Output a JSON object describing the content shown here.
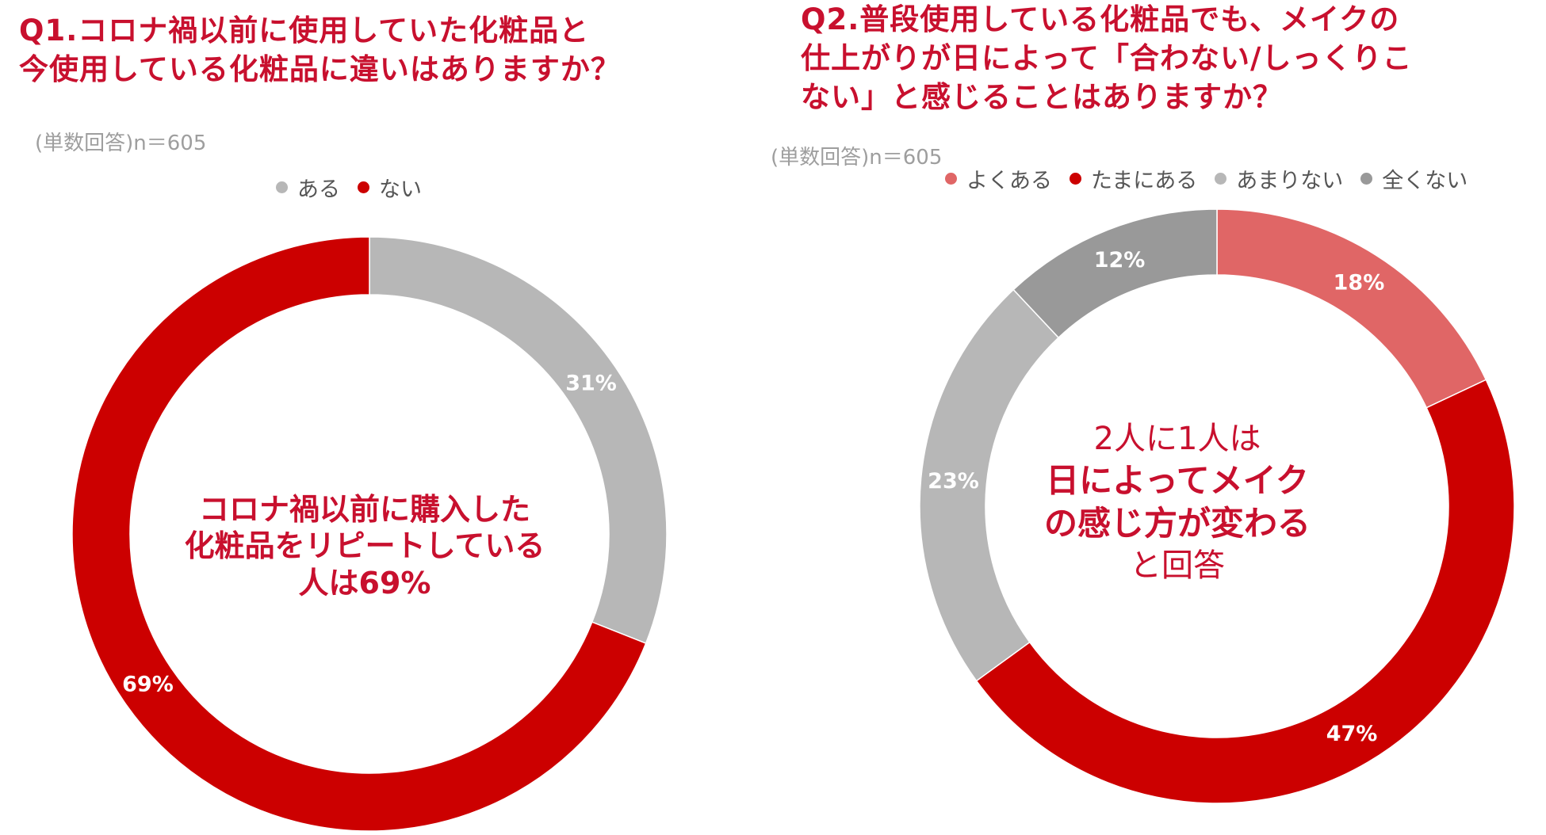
{
  "chart_data": [
    {
      "type": "pie",
      "title_lines": [
        "Q1.コロナ禍以前に使用していた化粧品と",
        "今使用している化粧品に違いはありますか？"
      ],
      "note": "(単数回答)n＝605",
      "categories": [
        "ある",
        "ない"
      ],
      "values": [
        31,
        69
      ],
      "value_labels": [
        "31%",
        "69%"
      ],
      "colors": [
        "#b7b7b7",
        "#cc0000"
      ],
      "legend_position": "top",
      "center_text": [
        "コロナ禍以前に購入した",
        "化粧品をリピートしている",
        "人は69%"
      ]
    },
    {
      "type": "pie",
      "title_lines": [
        "Q2.普段使用している化粧品でも、メイクの",
        "仕上がりが日によって「合わない/しっくりこ",
        "ない」と感じることはありますか？"
      ],
      "note": "(単数回答)n＝605",
      "categories": [
        "よくある",
        "たまにある",
        "あまりない",
        "全くない"
      ],
      "values": [
        18,
        47,
        23,
        12
      ],
      "value_labels": [
        "18%",
        "47%",
        "23%",
        "12%"
      ],
      "colors": [
        "#e06666",
        "#cc0000",
        "#b7b7b7",
        "#999999"
      ],
      "legend_position": "top",
      "center_text": [
        "2人に1人は",
        "日によってメイク",
        "の感じ方が変わる",
        "と回答"
      ]
    }
  ]
}
